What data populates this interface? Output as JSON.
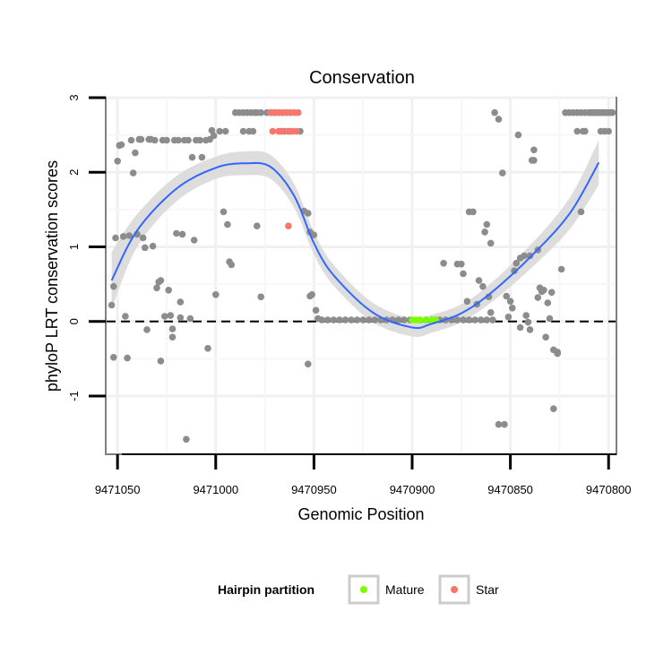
{
  "chart_data": {
    "type": "scatter",
    "title": "Conservation",
    "xlabel": "Genomic Position",
    "ylabel": "phyloP LRT conservation scores",
    "xlim": [
      9471056,
      9470796
    ],
    "ylim": [
      -1.78,
      3.0
    ],
    "x_reversed": true,
    "x_ticks": [
      9471050,
      9471000,
      9470950,
      9470900,
      9470850,
      9470800
    ],
    "x_tick_labels": [
      "9471050",
      "9471000",
      "9470950",
      "9470900",
      "9470850",
      "9470800"
    ],
    "y_ticks": [
      3,
      2,
      1,
      0,
      -1
    ],
    "y_tick_labels": [
      "3",
      "2",
      "1",
      "0",
      "-1"
    ],
    "reference_line": {
      "y": 0,
      "style": "dashed"
    },
    "grid": true,
    "legend": {
      "title": "Hairpin partition",
      "position": "bottom",
      "entries": [
        {
          "label": "Mature",
          "color": "#7cfc00"
        },
        {
          "label": "Star",
          "color": "#f8766d"
        }
      ]
    },
    "colors": {
      "other": "#8c8c8c",
      "mature": "#7cfc00",
      "star": "#f8766d",
      "smooth": "#3366ff",
      "ribbon": "#d9d9d9"
    },
    "series": [
      {
        "name": "Other",
        "points": [
          [
            9471053,
            0.22
          ],
          [
            9471052,
            0.47
          ],
          [
            9471051,
            1.12
          ],
          [
            9471050,
            2.15
          ],
          [
            9471049,
            2.36
          ],
          [
            9471048,
            2.37
          ],
          [
            9471052,
            -0.48
          ],
          [
            9471047,
            1.14
          ],
          [
            9471046,
            0.07
          ],
          [
            9471045,
            -0.49
          ],
          [
            9471044,
            1.15
          ],
          [
            9471043,
            2.43
          ],
          [
            9471042,
            1.99
          ],
          [
            9471041,
            2.26
          ],
          [
            9471040,
            1.17
          ],
          [
            9471039,
            2.44
          ],
          [
            9471038,
            2.44
          ],
          [
            9471037,
            1.12
          ],
          [
            9471036,
            0.99
          ],
          [
            9471035,
            -0.11
          ],
          [
            9471034,
            2.44
          ],
          [
            9471033,
            2.44
          ],
          [
            9471032,
            1.01
          ],
          [
            9471031,
            2.43
          ],
          [
            9471030,
            0.45
          ],
          [
            9471029,
            0.53
          ],
          [
            9471028,
            0.55
          ],
          [
            9471028,
            -0.53
          ],
          [
            9471027,
            2.43
          ],
          [
            9471026,
            0.07
          ],
          [
            9471025,
            2.43
          ],
          [
            9471024,
            0.42
          ],
          [
            9471023,
            0.08
          ],
          [
            9471022,
            -0.1
          ],
          [
            9471022,
            -0.21
          ],
          [
            9471021,
            2.43
          ],
          [
            9471020,
            1.18
          ],
          [
            9471019,
            2.43
          ],
          [
            9471018,
            0.26
          ],
          [
            9471018,
            0.05
          ],
          [
            9471017,
            1.17
          ],
          [
            9471016,
            2.43
          ],
          [
            9471015,
            -1.58
          ],
          [
            9471014,
            2.43
          ],
          [
            9471013,
            0.04
          ],
          [
            9471012,
            2.2
          ],
          [
            9471011,
            1.09
          ],
          [
            9471010,
            2.43
          ],
          [
            9471008,
            2.43
          ],
          [
            9471007,
            2.2
          ],
          [
            9471005,
            2.43
          ],
          [
            9471004,
            -0.36
          ],
          [
            9471003,
            2.44
          ],
          [
            9471002,
            2.56
          ],
          [
            9471001,
            2.49
          ],
          [
            9471000,
            0.36
          ],
          [
            9470998,
            2.55
          ],
          [
            9470996,
            1.47
          ],
          [
            9470995,
            2.55
          ],
          [
            9470994,
            1.3
          ],
          [
            9470993,
            0.8
          ],
          [
            9470992,
            0.76
          ],
          [
            9470990,
            2.8
          ],
          [
            9470988,
            2.8
          ],
          [
            9470986,
            2.8
          ],
          [
            9470984,
            2.8
          ],
          [
            9470982,
            2.8
          ],
          [
            9470980,
            2.8
          ],
          [
            9470979,
            2.8
          ],
          [
            9470977,
            2.8
          ],
          [
            9470986,
            2.55
          ],
          [
            9470983,
            2.55
          ],
          [
            9470981,
            2.55
          ],
          [
            9470979,
            1.28
          ],
          [
            9470977,
            0.33
          ],
          [
            9470974,
            2.8
          ],
          [
            9470972,
            2.8
          ],
          [
            9470970,
            2.8
          ],
          [
            9470968,
            2.8
          ],
          [
            9470966,
            2.8
          ],
          [
            9470964,
            2.8
          ],
          [
            9470962,
            2.8
          ],
          [
            9470967,
            2.55
          ],
          [
            9470965,
            2.55
          ],
          [
            9470963,
            2.55
          ],
          [
            9470962,
            2.55
          ],
          [
            9470957,
            2.55
          ],
          [
            9470955,
            1.48
          ],
          [
            9470953,
            1.45
          ],
          [
            9470952,
            1.2
          ],
          [
            9470953,
            -0.57
          ],
          [
            9470952,
            0.34
          ],
          [
            9470951,
            0.36
          ],
          [
            9470950,
            1.16
          ],
          [
            9470949,
            0.15
          ],
          [
            9470948,
            0.04
          ],
          [
            9470946,
            0.02
          ],
          [
            9470943,
            0.02
          ],
          [
            9470940,
            0.02
          ],
          [
            9470937,
            0.02
          ],
          [
            9470934,
            0.02
          ],
          [
            9470931,
            0.02
          ],
          [
            9470928,
            0.02
          ],
          [
            9470925,
            0.02
          ],
          [
            9470922,
            0.02
          ],
          [
            9470919,
            0.02
          ],
          [
            9470916,
            0.02
          ],
          [
            9470913,
            0.02
          ],
          [
            9470910,
            0.02
          ],
          [
            9470907,
            0.02
          ],
          [
            9470904,
            0.02
          ],
          [
            9470901,
            0.02
          ],
          [
            9470896,
            0.02
          ],
          [
            9470893,
            0.02
          ],
          [
            9470890,
            0.02
          ],
          [
            9470888,
            0.02
          ],
          [
            9470886,
            0.02
          ],
          [
            9470883,
            0.02
          ],
          [
            9470880,
            0.02
          ],
          [
            9470877,
            0.02
          ],
          [
            9470874,
            0.02
          ],
          [
            9470871,
            0.02
          ],
          [
            9470868,
            0.02
          ],
          [
            9470865,
            0.02
          ],
          [
            9470862,
            0.02
          ],
          [
            9470859,
            0.02
          ],
          [
            9470884,
            0.78
          ],
          [
            9470877,
            0.77
          ],
          [
            9470875,
            0.77
          ],
          [
            9470874,
            0.64
          ],
          [
            9470872,
            0.27
          ],
          [
            9470871,
            1.47
          ],
          [
            9470869,
            1.47
          ],
          [
            9470867,
            0.23
          ],
          [
            9470866,
            0.55
          ],
          [
            9470864,
            0.47
          ],
          [
            9470863,
            1.2
          ],
          [
            9470862,
            1.3
          ],
          [
            9470861,
            0.33
          ],
          [
            9470860,
            1.05
          ],
          [
            9470860,
            0.12
          ],
          [
            9470858,
            2.8
          ],
          [
            9470856,
            2.71
          ],
          [
            9470854,
            1.99
          ],
          [
            9470853,
            -1.38
          ],
          [
            9470852,
            0.34
          ],
          [
            9470851,
            0.06
          ],
          [
            9470850,
            0.27
          ],
          [
            9470849,
            0.18
          ],
          [
            9470848,
            0.68
          ],
          [
            9470847,
            0.78
          ],
          [
            9470846,
            2.5
          ],
          [
            9470845,
            0.85
          ],
          [
            9470845,
            -0.08
          ],
          [
            9470843,
            0.88
          ],
          [
            9470842,
            0.08
          ],
          [
            9470841,
            -0.01
          ],
          [
            9470840,
            0.88
          ],
          [
            9470839,
            2.16
          ],
          [
            9470838,
            2.16
          ],
          [
            9470838,
            2.3
          ],
          [
            9470836,
            0.96
          ],
          [
            9470835,
            0.45
          ],
          [
            9470834,
            0.4
          ],
          [
            9470833,
            0.42
          ],
          [
            9470832,
            -0.21
          ],
          [
            9470831,
            0.25
          ],
          [
            9470830,
            0.04
          ],
          [
            9470829,
            0.39
          ],
          [
            9470828,
            -0.38
          ],
          [
            9470828,
            -1.17
          ],
          [
            9470826,
            -0.43
          ],
          [
            9470824,
            0.7
          ],
          [
            9470822,
            2.8
          ],
          [
            9470820,
            2.8
          ],
          [
            9470818,
            2.8
          ],
          [
            9470816,
            2.8
          ],
          [
            9470814,
            2.8
          ],
          [
            9470812,
            2.8
          ],
          [
            9470810,
            2.8
          ],
          [
            9470816,
            2.55
          ],
          [
            9470814,
            1.47
          ],
          [
            9470813,
            2.55
          ],
          [
            9470812,
            2.55
          ],
          [
            9470809,
            2.8
          ],
          [
            9470808,
            2.8
          ],
          [
            9470807,
            2.8
          ],
          [
            9470806,
            2.8
          ],
          [
            9470805,
            2.8
          ],
          [
            9470804,
            2.8
          ],
          [
            9470803,
            2.8
          ],
          [
            9470802,
            2.8
          ],
          [
            9470801,
            2.8
          ],
          [
            9470800,
            2.8
          ],
          [
            9470799,
            2.8
          ],
          [
            9470798,
            2.8
          ],
          [
            9470804,
            2.55
          ],
          [
            9470802,
            2.55
          ],
          [
            9470800,
            2.55
          ],
          [
            9470826,
            -0.41
          ],
          [
            9470836,
            0.32
          ],
          [
            9470840,
            -0.11
          ],
          [
            9470856,
            -1.38
          ]
        ]
      },
      {
        "name": "Star",
        "points": [
          [
            9470972,
            2.8
          ],
          [
            9470970,
            2.8
          ],
          [
            9470968,
            2.8
          ],
          [
            9470966,
            2.8
          ],
          [
            9470964,
            2.8
          ],
          [
            9470962,
            2.8
          ],
          [
            9470960,
            2.8
          ],
          [
            9470958,
            2.8
          ],
          [
            9470971,
            2.55
          ],
          [
            9470968,
            2.55
          ],
          [
            9470966,
            2.55
          ],
          [
            9470963,
            2.55
          ],
          [
            9470961,
            2.55
          ],
          [
            9470959,
            2.55
          ],
          [
            9470963,
            1.28
          ]
        ]
      },
      {
        "name": "Mature",
        "points": [
          [
            9470900,
            0.02
          ],
          [
            9470898,
            0.02
          ],
          [
            9470896,
            0.02
          ],
          [
            9470893,
            0.02
          ],
          [
            9470890,
            0.02
          ],
          [
            9470888,
            0.02
          ]
        ]
      }
    ],
    "smooth": {
      "x": [
        9471053,
        9471040,
        9471020,
        9471000,
        9470985,
        9470972,
        9470960,
        9470950,
        9470940,
        9470920,
        9470900,
        9470890,
        9470875,
        9470860,
        9470840,
        9470820,
        9470805
      ],
      "y": [
        0.55,
        1.22,
        1.78,
        2.06,
        2.12,
        2.07,
        1.68,
        1.05,
        0.62,
        0.12,
        -0.08,
        -0.03,
        0.11,
        0.38,
        0.86,
        1.44,
        2.13
      ],
      "ci": [
        0.38,
        0.22,
        0.17,
        0.15,
        0.16,
        0.16,
        0.16,
        0.15,
        0.14,
        0.13,
        0.12,
        0.12,
        0.12,
        0.13,
        0.16,
        0.21,
        0.3
      ]
    }
  }
}
